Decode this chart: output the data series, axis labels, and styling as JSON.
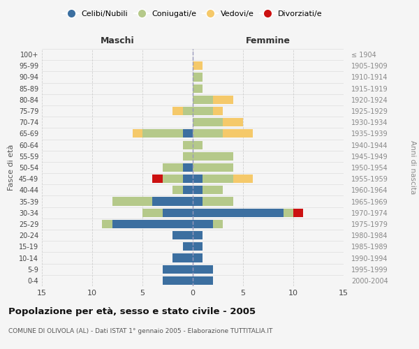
{
  "age_groups": [
    "0-4",
    "5-9",
    "10-14",
    "15-19",
    "20-24",
    "25-29",
    "30-34",
    "35-39",
    "40-44",
    "45-49",
    "50-54",
    "55-59",
    "60-64",
    "65-69",
    "70-74",
    "75-79",
    "80-84",
    "85-89",
    "90-94",
    "95-99",
    "100+"
  ],
  "birth_years": [
    "2000-2004",
    "1995-1999",
    "1990-1994",
    "1985-1989",
    "1980-1984",
    "1975-1979",
    "1970-1974",
    "1965-1969",
    "1960-1964",
    "1955-1959",
    "1950-1954",
    "1945-1949",
    "1940-1944",
    "1935-1939",
    "1930-1934",
    "1925-1929",
    "1920-1924",
    "1915-1919",
    "1910-1914",
    "1905-1909",
    "≤ 1904"
  ],
  "males": {
    "celibi": [
      3,
      3,
      2,
      1,
      2,
      8,
      3,
      4,
      1,
      1,
      1,
      0,
      0,
      1,
      0,
      0,
      0,
      0,
      0,
      0,
      0
    ],
    "coniugati": [
      0,
      0,
      0,
      0,
      0,
      1,
      2,
      4,
      1,
      2,
      2,
      1,
      1,
      4,
      0,
      1,
      0,
      0,
      0,
      0,
      0
    ],
    "vedovi": [
      0,
      0,
      0,
      0,
      0,
      0,
      0,
      0,
      0,
      0,
      0,
      0,
      0,
      1,
      0,
      1,
      0,
      0,
      0,
      0,
      0
    ],
    "divorziati": [
      0,
      0,
      0,
      0,
      0,
      0,
      0,
      0,
      0,
      1,
      0,
      0,
      0,
      0,
      0,
      0,
      0,
      0,
      0,
      0,
      0
    ]
  },
  "females": {
    "nubili": [
      2,
      2,
      1,
      1,
      1,
      2,
      9,
      1,
      1,
      1,
      0,
      0,
      0,
      0,
      0,
      0,
      0,
      0,
      0,
      0,
      0
    ],
    "coniugate": [
      0,
      0,
      0,
      0,
      0,
      1,
      1,
      3,
      2,
      3,
      4,
      4,
      1,
      3,
      3,
      2,
      2,
      1,
      1,
      0,
      0
    ],
    "vedove": [
      0,
      0,
      0,
      0,
      0,
      0,
      0,
      0,
      0,
      2,
      0,
      0,
      0,
      3,
      2,
      1,
      2,
      0,
      0,
      1,
      0
    ],
    "divorziate": [
      0,
      0,
      0,
      0,
      0,
      0,
      1,
      0,
      0,
      0,
      0,
      0,
      0,
      0,
      0,
      0,
      0,
      0,
      0,
      0,
      0
    ]
  },
  "colors": {
    "celibi_nubili": "#3c6fa0",
    "coniugati": "#b5c98a",
    "vedovi": "#f5c96a",
    "divorziati": "#cc1111"
  },
  "xlim": 15,
  "title": "Popolazione per età, sesso e stato civile - 2005",
  "subtitle": "COMUNE DI OLIVOLA (AL) - Dati ISTAT 1° gennaio 2005 - Elaborazione TUTTITALIA.IT",
  "ylabel_left": "Fasce di età",
  "ylabel_right": "Anni di nascita",
  "xlabel_left": "Maschi",
  "xlabel_right": "Femmine",
  "legend_labels": [
    "Celibi/Nubili",
    "Coniugati/e",
    "Vedovi/e",
    "Divorziati/e"
  ],
  "bg_color": "#f5f5f5",
  "grid_color": "#cccccc"
}
